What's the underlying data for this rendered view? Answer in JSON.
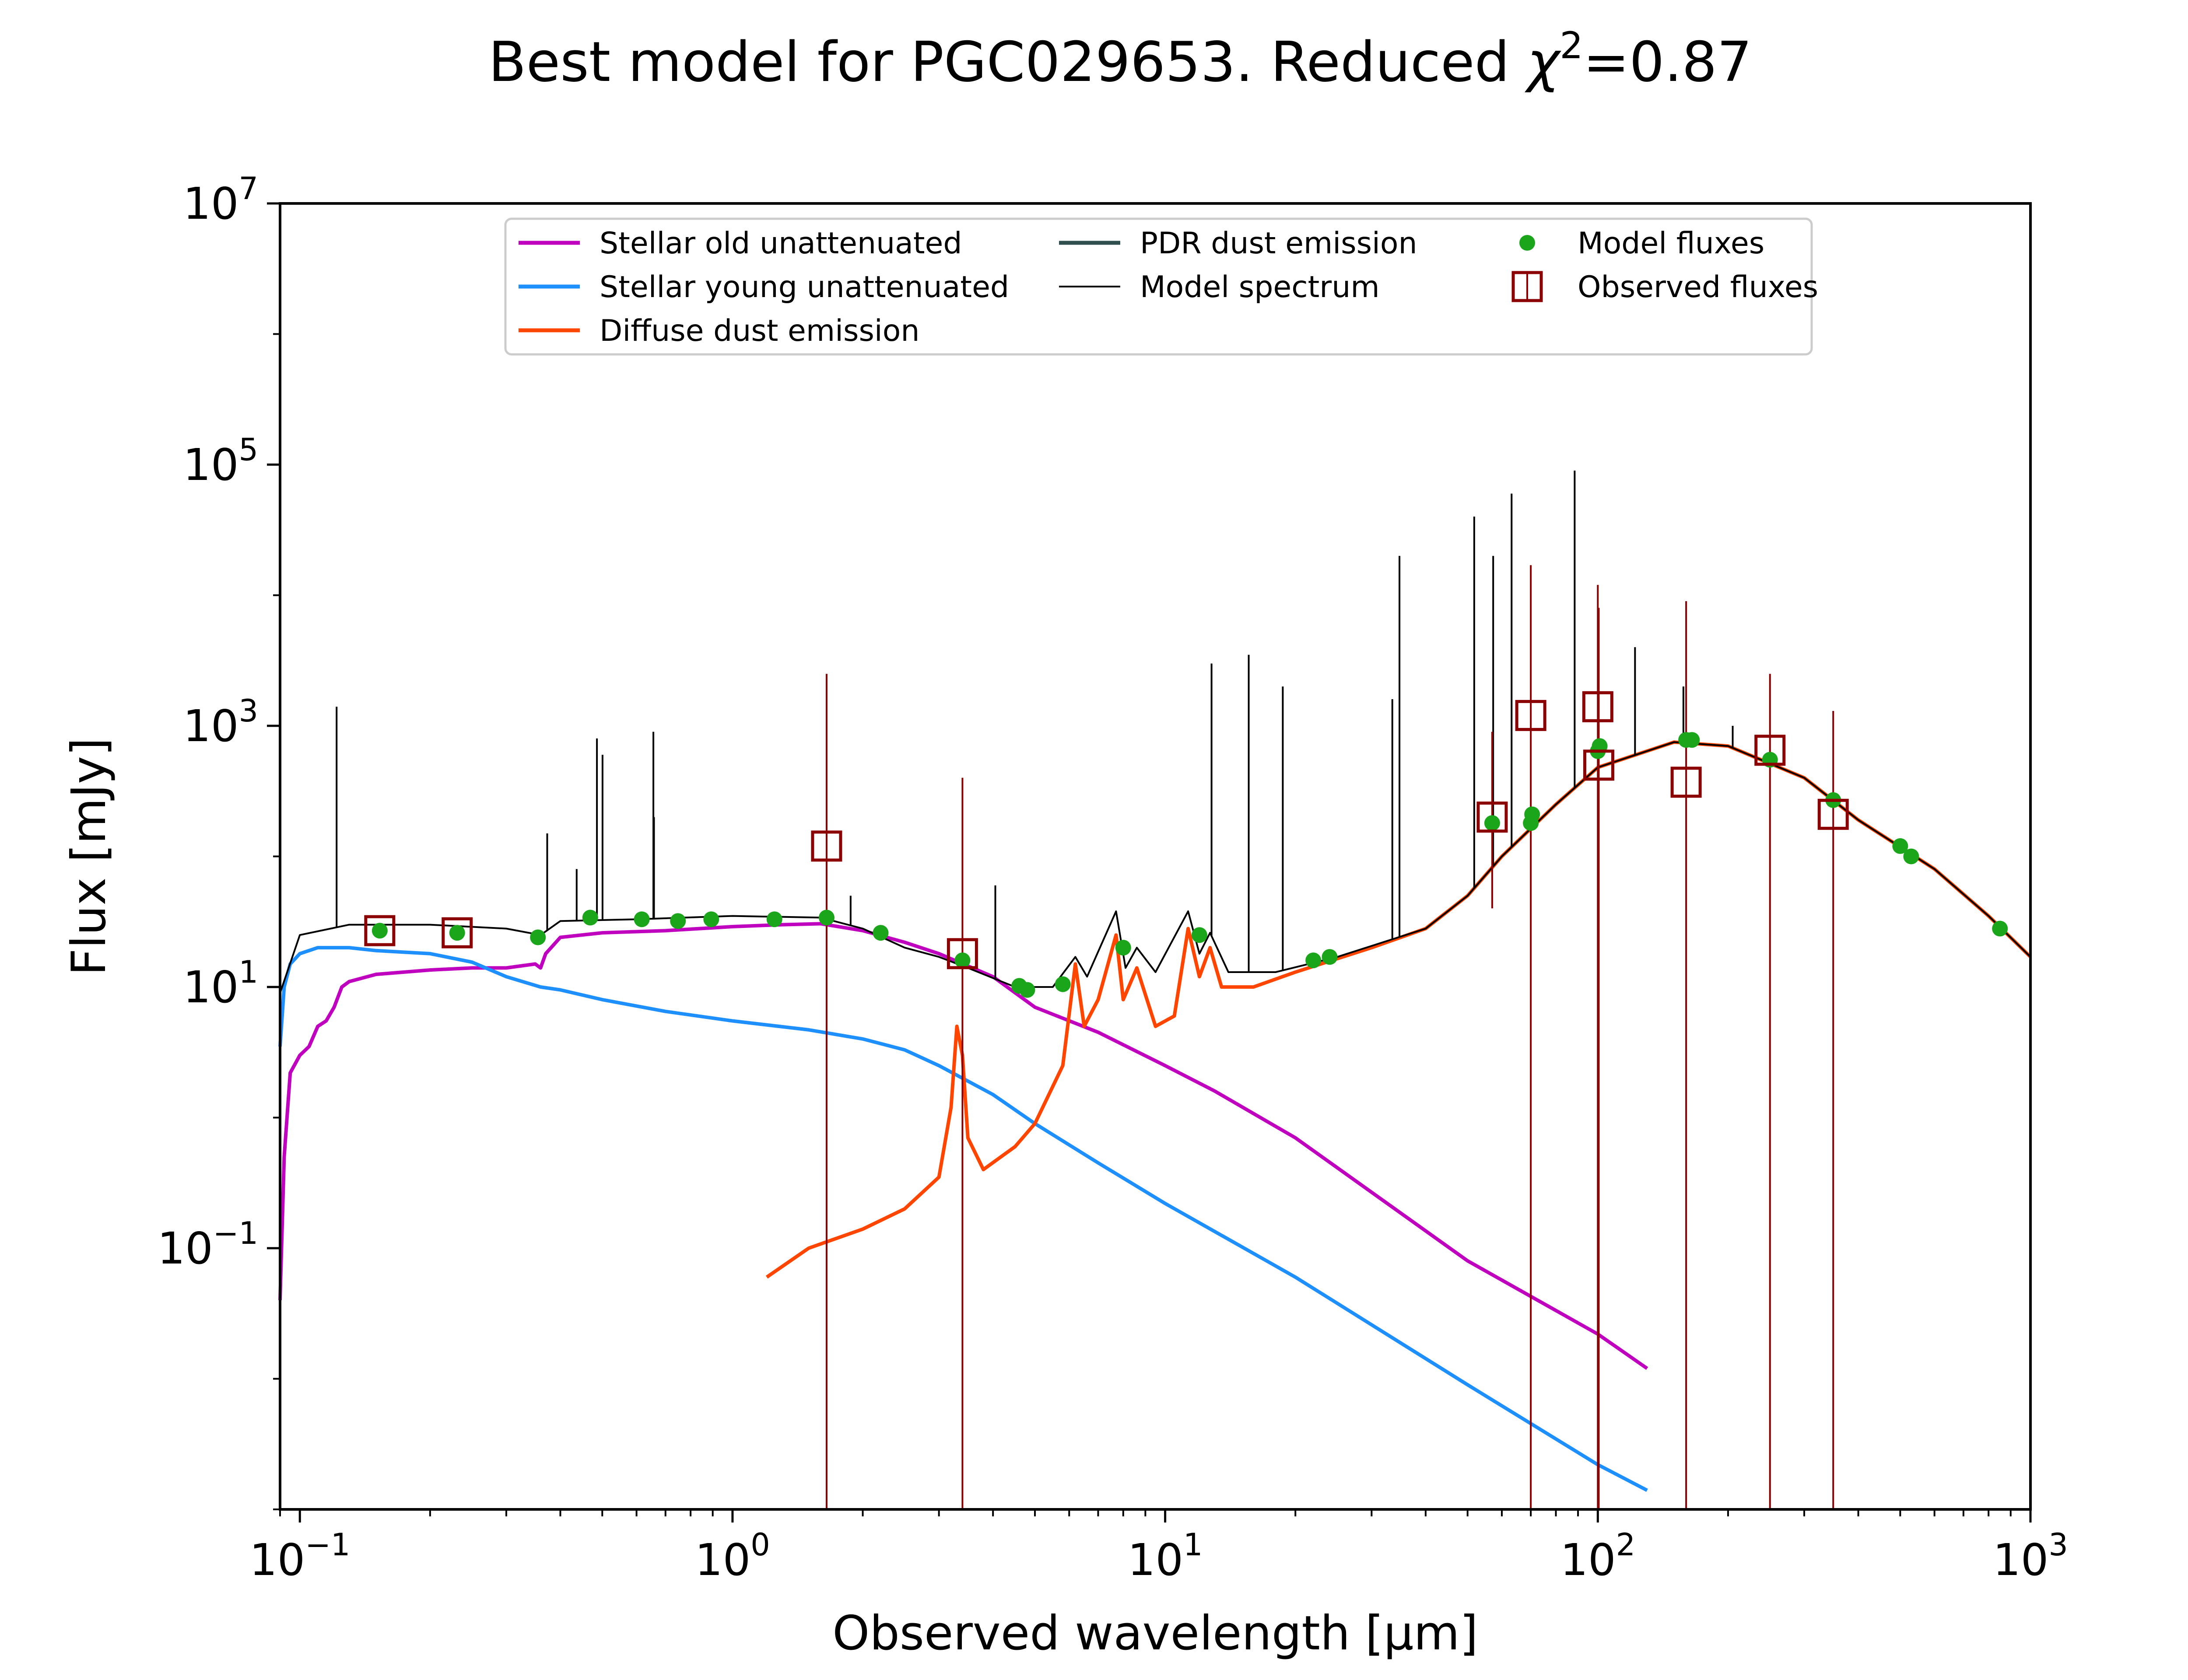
{
  "chart_data": {
    "type": "line",
    "title": "Best model for PGC029653. Reduced χ²=0.87",
    "title_parts": {
      "main": "Best model for PGC029653. Reduced ",
      "chi": "χ",
      "exp": "2",
      "tail": "=0.87"
    },
    "xlabel": "Observed wavelength [μm]",
    "ylabel": "Flux [mJy]",
    "x_scale": "log",
    "y_scale": "log",
    "xlim": [
      0.09,
      1000
    ],
    "ylim": [
      0.001,
      10000000
    ],
    "x_ticks": [
      {
        "value": 0.1,
        "base": "10",
        "exp": "−1"
      },
      {
        "value": 1,
        "base": "10",
        "exp": "0"
      },
      {
        "value": 10,
        "base": "10",
        "exp": "1"
      },
      {
        "value": 100,
        "base": "10",
        "exp": "2"
      },
      {
        "value": 1000,
        "base": "10",
        "exp": "3"
      }
    ],
    "y_ticks": [
      {
        "value": 0.1,
        "base": "10",
        "exp": "−1"
      },
      {
        "value": 10,
        "base": "10",
        "exp": "1"
      },
      {
        "value": 1000,
        "base": "10",
        "exp": "3"
      },
      {
        "value": 100000,
        "base": "10",
        "exp": "5"
      },
      {
        "value": 10000000,
        "base": "10",
        "exp": "7"
      }
    ],
    "grid": false,
    "legend_position": "top-center",
    "series": [
      {
        "name": "Stellar old unattenuated",
        "color": "#bf00bf",
        "points": [
          [
            0.09,
            0.04
          ],
          [
            0.092,
            0.5
          ],
          [
            0.095,
            2.2
          ],
          [
            0.1,
            3.0
          ],
          [
            0.105,
            3.5
          ],
          [
            0.11,
            5.0
          ],
          [
            0.115,
            5.5
          ],
          [
            0.12,
            7.0
          ],
          [
            0.125,
            10.0
          ],
          [
            0.13,
            11.0
          ],
          [
            0.15,
            12.5
          ],
          [
            0.2,
            13.5
          ],
          [
            0.25,
            14.0
          ],
          [
            0.3,
            14.0
          ],
          [
            0.35,
            15.0
          ],
          [
            0.36,
            14.0
          ],
          [
            0.37,
            18.0
          ],
          [
            0.4,
            24.0
          ],
          [
            0.5,
            26.0
          ],
          [
            0.7,
            27.0
          ],
          [
            1.0,
            29.0
          ],
          [
            1.3,
            30.0
          ],
          [
            1.6,
            30.5
          ],
          [
            2.0,
            27.0
          ],
          [
            2.5,
            22.0
          ],
          [
            3.0,
            18.0
          ],
          [
            4.0,
            12.0
          ],
          [
            5.0,
            7.0
          ],
          [
            7.0,
            4.5
          ],
          [
            10.0,
            2.5
          ],
          [
            13.0,
            1.6
          ],
          [
            20.0,
            0.7
          ],
          [
            50.0,
            0.08
          ],
          [
            100.0,
            0.022
          ],
          [
            130.0,
            0.012
          ]
        ]
      },
      {
        "name": "Stellar young unattenuated",
        "color": "#1e8fff",
        "points": [
          [
            0.09,
            3.5
          ],
          [
            0.092,
            10.0
          ],
          [
            0.095,
            15.0
          ],
          [
            0.1,
            18.0
          ],
          [
            0.11,
            20.0
          ],
          [
            0.13,
            20.0
          ],
          [
            0.15,
            19.0
          ],
          [
            0.2,
            18.0
          ],
          [
            0.25,
            15.5
          ],
          [
            0.3,
            12.0
          ],
          [
            0.36,
            10.0
          ],
          [
            0.4,
            9.5
          ],
          [
            0.5,
            8.0
          ],
          [
            0.7,
            6.5
          ],
          [
            1.0,
            5.5
          ],
          [
            1.5,
            4.7
          ],
          [
            2.0,
            4.0
          ],
          [
            2.5,
            3.3
          ],
          [
            3.0,
            2.5
          ],
          [
            4.0,
            1.5
          ],
          [
            5.0,
            0.9
          ],
          [
            7.0,
            0.45
          ],
          [
            10.0,
            0.22
          ],
          [
            20.0,
            0.06
          ],
          [
            50.0,
            0.009
          ],
          [
            100.0,
            0.0022
          ],
          [
            130.0,
            0.0014
          ]
        ]
      },
      {
        "name": "Diffuse dust emission",
        "color": "#ff4500",
        "points": [
          [
            1.2,
            0.06
          ],
          [
            1.5,
            0.1
          ],
          [
            2.0,
            0.14
          ],
          [
            2.5,
            0.2
          ],
          [
            3.0,
            0.35
          ],
          [
            3.2,
            1.2
          ],
          [
            3.3,
            5.0
          ],
          [
            3.4,
            3.0
          ],
          [
            3.5,
            0.7
          ],
          [
            3.8,
            0.4
          ],
          [
            4.5,
            0.6
          ],
          [
            5.0,
            0.9
          ],
          [
            5.8,
            2.5
          ],
          [
            6.2,
            15.0
          ],
          [
            6.5,
            5.0
          ],
          [
            7.0,
            8.0
          ],
          [
            7.7,
            25.0
          ],
          [
            8.0,
            8.0
          ],
          [
            8.6,
            14.0
          ],
          [
            9.5,
            5.0
          ],
          [
            10.5,
            6.0
          ],
          [
            11.3,
            28.0
          ],
          [
            12.0,
            12.0
          ],
          [
            12.7,
            20.0
          ],
          [
            13.5,
            10.0
          ],
          [
            16.0,
            10.0
          ],
          [
            20.0,
            13.0
          ],
          [
            30.0,
            20.0
          ],
          [
            40.0,
            28.0
          ],
          [
            50.0,
            50.0
          ],
          [
            60.0,
            100.0
          ],
          [
            80.0,
            250.0
          ],
          [
            100.0,
            480.0
          ],
          [
            150.0,
            750.0
          ],
          [
            200.0,
            700.0
          ],
          [
            300.0,
            400.0
          ],
          [
            400.0,
            190.0
          ],
          [
            600.0,
            80.0
          ],
          [
            800.0,
            35.0
          ],
          [
            1000.0,
            17.0
          ]
        ]
      },
      {
        "name": "PDR dust emission",
        "color": "#2f4f4f",
        "points": []
      },
      {
        "name": "Model spectrum",
        "color": "#000000",
        "points": [
          [
            0.09,
            9.0
          ],
          [
            0.1,
            25.0
          ],
          [
            0.13,
            30.0
          ],
          [
            0.2,
            30.0
          ],
          [
            0.3,
            28.0
          ],
          [
            0.36,
            25.0
          ],
          [
            0.4,
            32.0
          ],
          [
            0.6,
            33.0
          ],
          [
            1.0,
            35.0
          ],
          [
            1.6,
            34.0
          ],
          [
            2.0,
            28.0
          ],
          [
            2.5,
            20.0
          ],
          [
            3.0,
            17.0
          ],
          [
            3.5,
            14.0
          ],
          [
            4.5,
            10.0
          ],
          [
            5.5,
            10.0
          ],
          [
            6.2,
            17.0
          ],
          [
            6.6,
            12.0
          ],
          [
            7.7,
            38.0
          ],
          [
            8.1,
            14.0
          ],
          [
            8.6,
            20.0
          ],
          [
            9.5,
            13.0
          ],
          [
            11.3,
            38.0
          ],
          [
            12.0,
            18.0
          ],
          [
            12.7,
            26.0
          ],
          [
            14.0,
            13.0
          ],
          [
            18.0,
            13.0
          ],
          [
            25.0,
            17.0
          ],
          [
            40.0,
            28.0
          ],
          [
            50.0,
            50.0
          ],
          [
            60.0,
            100.0
          ],
          [
            80.0,
            250.0
          ],
          [
            100.0,
            480.0
          ],
          [
            150.0,
            750.0
          ],
          [
            200.0,
            700.0
          ],
          [
            300.0,
            400.0
          ],
          [
            400.0,
            190.0
          ],
          [
            600.0,
            80.0
          ],
          [
            800.0,
            35.0
          ],
          [
            1000.0,
            17.0
          ]
        ],
        "emission_lines": [
          [
            0.1216,
            1400
          ],
          [
            0.373,
            150
          ],
          [
            0.486,
            800
          ],
          [
            0.5007,
            600
          ],
          [
            0.6563,
            900
          ],
          [
            0.6584,
            200
          ],
          [
            0.4363,
            80
          ],
          [
            1.875,
            50
          ],
          [
            4.05,
            60
          ],
          [
            12.8,
            3000
          ],
          [
            15.6,
            3500
          ],
          [
            18.7,
            2000
          ],
          [
            33.5,
            1600
          ],
          [
            34.8,
            20000
          ],
          [
            51.8,
            40000
          ],
          [
            57.3,
            20000
          ],
          [
            63.2,
            60000
          ],
          [
            88.4,
            90000
          ],
          [
            121.9,
            4000
          ],
          [
            157.7,
            2000
          ],
          [
            205.0,
            1000
          ]
        ]
      }
    ],
    "model_fluxes": {
      "name": "Model fluxes",
      "color": "#1aa51a",
      "points": [
        [
          0.153,
          27.0
        ],
        [
          0.231,
          26.0
        ],
        [
          0.355,
          24.0
        ],
        [
          0.469,
          34.0
        ],
        [
          0.617,
          33.0
        ],
        [
          0.748,
          32.0
        ],
        [
          0.893,
          33.0
        ],
        [
          1.25,
          33.0
        ],
        [
          1.65,
          34.0
        ],
        [
          2.2,
          26.0
        ],
        [
          3.4,
          16.0
        ],
        [
          4.6,
          10.2
        ],
        [
          4.8,
          9.5
        ],
        [
          5.8,
          10.5
        ],
        [
          8.0,
          20.0
        ],
        [
          12.0,
          25.0
        ],
        [
          22.0,
          16.0
        ],
        [
          24.0,
          17.0
        ],
        [
          57.0,
          180.0
        ],
        [
          70.0,
          180.0
        ],
        [
          70.5,
          210.0
        ],
        [
          100.0,
          640.0
        ],
        [
          101.0,
          700.0
        ],
        [
          160.0,
          780.0
        ],
        [
          165.0,
          780.0
        ],
        [
          250.0,
          550.0
        ],
        [
          350.0,
          270.0
        ],
        [
          500.0,
          120.0
        ],
        [
          530.0,
          100.0
        ],
        [
          850.0,
          28.0
        ]
      ]
    },
    "observed_fluxes": {
      "name": "Observed fluxes",
      "color": "#8b0000",
      "points": [
        {
          "x": 0.153,
          "y": 27.0,
          "err_low": 27.0,
          "err_high": 27.0
        },
        {
          "x": 0.231,
          "y": 26.0,
          "err_low": 26.0,
          "err_high": 26.0
        },
        {
          "x": 1.65,
          "y": 120.0,
          "err_low": 0.001,
          "err_high": 2500.0
        },
        {
          "x": 3.4,
          "y": 18.0,
          "err_low": 0.001,
          "err_high": 400.0
        },
        {
          "x": 57.0,
          "y": 200.0,
          "err_low": 40.0,
          "err_high": 900.0
        },
        {
          "x": 70.0,
          "y": 1200.0,
          "err_low": 0.001,
          "err_high": 17000.0
        },
        {
          "x": 100.0,
          "y": 1400.0,
          "err_low": 0.001,
          "err_high": 12000.0
        },
        {
          "x": 100.5,
          "y": 500.0,
          "err_low": 0.001,
          "err_high": 8000.0
        },
        {
          "x": 160.0,
          "y": 370.0,
          "err_low": 0.001,
          "err_high": 9000.0
        },
        {
          "x": 250.0,
          "y": 650.0,
          "err_low": 0.001,
          "err_high": 2500.0
        },
        {
          "x": 350.0,
          "y": 210.0,
          "err_low": 0.001,
          "err_high": 1300.0
        }
      ]
    },
    "legend": [
      {
        "label": "Stellar old unattenuated",
        "kind": "line",
        "color": "#bf00bf"
      },
      {
        "label": "Stellar young unattenuated",
        "kind": "line",
        "color": "#1e8fff"
      },
      {
        "label": "Diffuse dust emission",
        "kind": "line",
        "color": "#ff4500"
      },
      {
        "label": "PDR dust emission",
        "kind": "line",
        "color": "#2f4f4f"
      },
      {
        "label": "Model spectrum",
        "kind": "thinline",
        "color": "#000000"
      },
      {
        "label": "Model fluxes",
        "kind": "dot",
        "color": "#1aa51a"
      },
      {
        "label": "Observed fluxes",
        "kind": "square",
        "color": "#8b0000"
      }
    ]
  }
}
